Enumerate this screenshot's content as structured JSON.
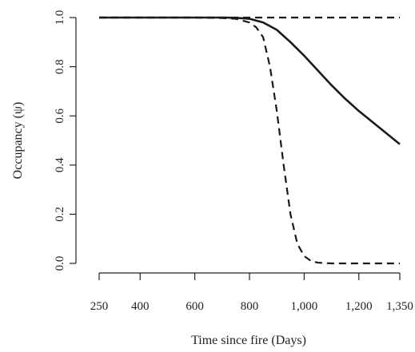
{
  "chart_data": {
    "type": "line",
    "xlabel": "Time since fire (Days)",
    "ylabel": "Occupancy (ψ)",
    "xlim": [
      250,
      1350
    ],
    "ylim": [
      0,
      1
    ],
    "x_ticks": [
      250,
      400,
      600,
      800,
      1000,
      1200,
      1350
    ],
    "x_tick_labels": [
      "250",
      "400",
      "600",
      "800",
      "1,000",
      "1,200",
      "1,350"
    ],
    "y_ticks": [
      0,
      0.2,
      0.4,
      0.6,
      0.8,
      1.0
    ],
    "y_tick_labels": [
      "0.0",
      "0.2",
      "0.4",
      "0.6",
      "0.8",
      "1.0"
    ],
    "grid": false,
    "series": [
      {
        "style": "solid",
        "x": [
          250,
          400,
          600,
          700,
          750,
          800,
          850,
          900,
          950,
          1000,
          1050,
          1100,
          1150,
          1200,
          1250,
          1300,
          1350
        ],
        "y": [
          1.0,
          1.0,
          1.0,
          1.0,
          0.999,
          0.995,
          0.98,
          0.95,
          0.9,
          0.845,
          0.785,
          0.725,
          0.67,
          0.62,
          0.575,
          0.53,
          0.485
        ]
      },
      {
        "style": "dashed",
        "x": [
          250,
          400,
          600,
          700,
          750,
          800,
          825,
          850,
          875,
          900,
          925,
          950,
          975,
          1000,
          1025,
          1050,
          1100,
          1200,
          1350
        ],
        "y": [
          1.0,
          1.0,
          1.0,
          0.998,
          0.995,
          0.98,
          0.96,
          0.92,
          0.8,
          0.62,
          0.4,
          0.2,
          0.08,
          0.03,
          0.01,
          0.003,
          0.0,
          0.0,
          0.0
        ]
      },
      {
        "style": "dashed",
        "x": [
          250,
          1350
        ],
        "y": [
          1.0,
          1.0
        ]
      }
    ]
  }
}
